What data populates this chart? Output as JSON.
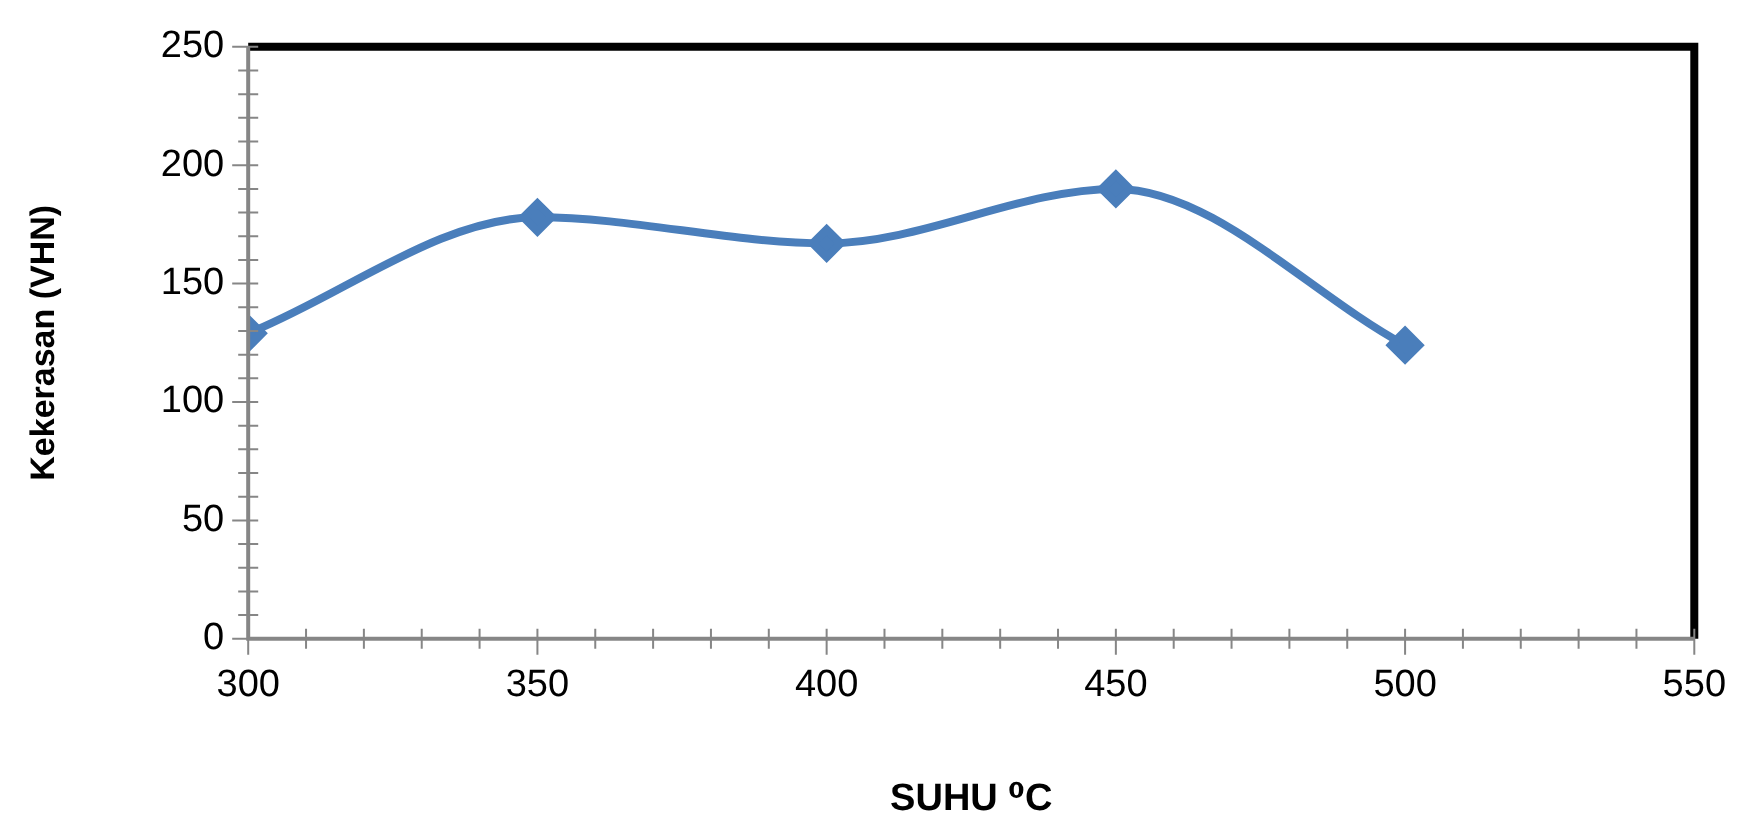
{
  "chart_data": {
    "type": "line",
    "xlabel": "SUHU ⁰C",
    "ylabel": "Kekerasan (VHN)",
    "x": [
      300,
      350,
      400,
      450,
      500
    ],
    "series": [
      {
        "color": "#4a7ebb",
        "values": [
          129,
          178,
          167,
          190,
          124
        ]
      }
    ],
    "xlim": [
      300,
      550
    ],
    "xticks": [
      300,
      350,
      400,
      450,
      500,
      550
    ],
    "ylim": [
      0,
      250
    ],
    "yticks": [
      0,
      50,
      100,
      150,
      200,
      250
    ],
    "grid": false,
    "legend": false,
    "marker": "diamond",
    "line_style": "solid"
  }
}
